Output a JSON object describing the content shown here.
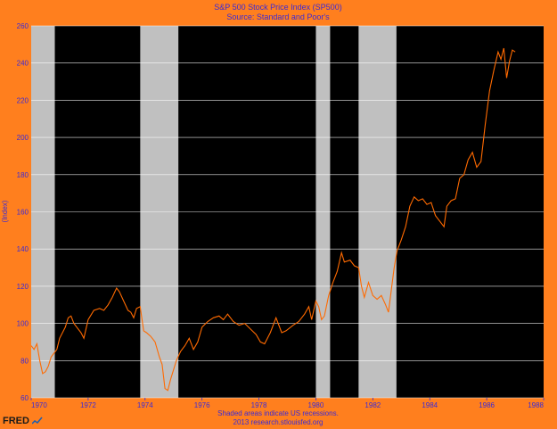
{
  "chart_data": {
    "type": "line",
    "title": "S&P 500 Stock Price Index (SP500)",
    "subtitle": "Source: Standard and Poor's",
    "ylabel": "(Index)",
    "xlabel": "",
    "xlim": [
      1970.0,
      1988.0
    ],
    "ylim": [
      60,
      260
    ],
    "x_ticks": [
      1970,
      1972,
      1974,
      1976,
      1978,
      1980,
      1982,
      1984,
      1986,
      1988
    ],
    "x_tick_labels": [
      "1970",
      "1972",
      "1974",
      "1976",
      "1978",
      "1980",
      "1982",
      "1984",
      "1986",
      "1988"
    ],
    "y_ticks": [
      60,
      80,
      100,
      120,
      140,
      160,
      180,
      200,
      220,
      240,
      260
    ],
    "y_tick_labels": [
      "60",
      "80",
      "100",
      "120",
      "140",
      "160",
      "180",
      "200",
      "220",
      "240",
      "260"
    ],
    "grid": true,
    "recessions": [
      [
        1970.0,
        1970.83
      ],
      [
        1973.83,
        1975.17
      ],
      [
        1980.0,
        1980.5
      ],
      [
        1981.5,
        1982.83
      ]
    ],
    "series": [
      {
        "color": "#ff6a00",
        "points": [
          [
            1970.0,
            88
          ],
          [
            1970.1,
            86
          ],
          [
            1970.2,
            89
          ],
          [
            1970.3,
            80
          ],
          [
            1970.4,
            73
          ],
          [
            1970.5,
            74
          ],
          [
            1970.6,
            77
          ],
          [
            1970.7,
            82
          ],
          [
            1970.8,
            84
          ],
          [
            1970.9,
            86
          ],
          [
            1971.0,
            92
          ],
          [
            1971.2,
            98
          ],
          [
            1971.3,
            103
          ],
          [
            1971.4,
            104
          ],
          [
            1971.5,
            100
          ],
          [
            1971.6,
            98
          ],
          [
            1971.75,
            95
          ],
          [
            1971.85,
            92
          ],
          [
            1972.0,
            102
          ],
          [
            1972.2,
            107
          ],
          [
            1972.4,
            108
          ],
          [
            1972.55,
            107
          ],
          [
            1972.7,
            110
          ],
          [
            1972.85,
            114
          ],
          [
            1973.0,
            119
          ],
          [
            1973.1,
            117
          ],
          [
            1973.25,
            112
          ],
          [
            1973.4,
            107
          ],
          [
            1973.5,
            106
          ],
          [
            1973.6,
            103
          ],
          [
            1973.7,
            108
          ],
          [
            1973.83,
            109
          ],
          [
            1973.95,
            96
          ],
          [
            1974.05,
            95
          ],
          [
            1974.2,
            93
          ],
          [
            1974.35,
            90
          ],
          [
            1974.5,
            82
          ],
          [
            1974.6,
            78
          ],
          [
            1974.7,
            65
          ],
          [
            1974.8,
            64
          ],
          [
            1974.9,
            70
          ],
          [
            1975.0,
            75
          ],
          [
            1975.1,
            80
          ],
          [
            1975.25,
            85
          ],
          [
            1975.4,
            88
          ],
          [
            1975.55,
            92
          ],
          [
            1975.7,
            86
          ],
          [
            1975.85,
            90
          ],
          [
            1976.0,
            98
          ],
          [
            1976.2,
            101
          ],
          [
            1976.4,
            103
          ],
          [
            1976.6,
            104
          ],
          [
            1976.75,
            102
          ],
          [
            1976.9,
            105
          ],
          [
            1977.1,
            101
          ],
          [
            1977.3,
            99
          ],
          [
            1977.5,
            100
          ],
          [
            1977.7,
            97
          ],
          [
            1977.9,
            94
          ],
          [
            1978.05,
            90
          ],
          [
            1978.2,
            89
          ],
          [
            1978.4,
            95
          ],
          [
            1978.6,
            103
          ],
          [
            1978.8,
            95
          ],
          [
            1978.95,
            96
          ],
          [
            1979.2,
            99
          ],
          [
            1979.4,
            101
          ],
          [
            1979.6,
            105
          ],
          [
            1979.75,
            109
          ],
          [
            1979.85,
            102
          ],
          [
            1980.0,
            112
          ],
          [
            1980.1,
            109
          ],
          [
            1980.2,
            102
          ],
          [
            1980.3,
            104
          ],
          [
            1980.45,
            115
          ],
          [
            1980.6,
            122
          ],
          [
            1980.75,
            128
          ],
          [
            1980.9,
            138
          ],
          [
            1981.0,
            133
          ],
          [
            1981.2,
            134
          ],
          [
            1981.35,
            131
          ],
          [
            1981.5,
            130
          ],
          [
            1981.6,
            120
          ],
          [
            1981.7,
            114
          ],
          [
            1981.85,
            122
          ],
          [
            1982.0,
            115
          ],
          [
            1982.15,
            113
          ],
          [
            1982.3,
            115
          ],
          [
            1982.45,
            110
          ],
          [
            1982.55,
            106
          ],
          [
            1982.65,
            118
          ],
          [
            1982.75,
            130
          ],
          [
            1982.85,
            139
          ],
          [
            1983.0,
            145
          ],
          [
            1983.15,
            152
          ],
          [
            1983.3,
            163
          ],
          [
            1983.45,
            168
          ],
          [
            1983.6,
            166
          ],
          [
            1983.75,
            167
          ],
          [
            1983.9,
            164
          ],
          [
            1984.05,
            165
          ],
          [
            1984.2,
            158
          ],
          [
            1984.35,
            155
          ],
          [
            1984.5,
            152
          ],
          [
            1984.6,
            163
          ],
          [
            1984.75,
            166
          ],
          [
            1984.9,
            167
          ],
          [
            1985.05,
            178
          ],
          [
            1985.2,
            180
          ],
          [
            1985.35,
            188
          ],
          [
            1985.5,
            192
          ],
          [
            1985.65,
            184
          ],
          [
            1985.8,
            187
          ],
          [
            1985.95,
            207
          ],
          [
            1986.1,
            225
          ],
          [
            1986.25,
            236
          ],
          [
            1986.4,
            246
          ],
          [
            1986.5,
            242
          ],
          [
            1986.6,
            248
          ],
          [
            1986.7,
            232
          ],
          [
            1986.8,
            241
          ],
          [
            1986.9,
            247
          ],
          [
            1987.0,
            246
          ]
        ]
      }
    ],
    "notes": [
      "Shaded areas indicate US recessions.",
      "2013 research.stlouisfed.org"
    ]
  },
  "colors": {
    "background": "#ff7f1e",
    "plot_background": "#000000",
    "recession_fill": "#c0c0c0",
    "text": "#3a2ad8",
    "grid": "#ffffff"
  },
  "logo": {
    "text": "FRED",
    "icon": "fred-line-icon"
  }
}
